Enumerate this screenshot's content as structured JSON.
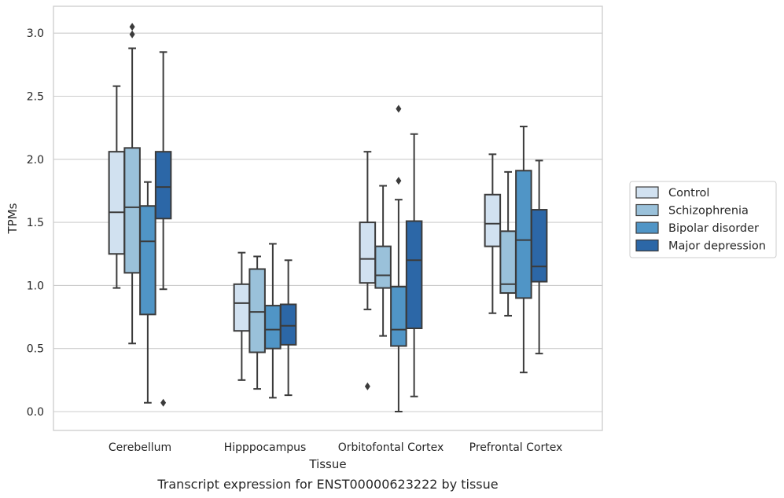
{
  "chart_data": {
    "type": "box",
    "title": "",
    "caption": "Transcript expression for ENST00000623222 by tissue",
    "xlabel": "Tissue",
    "ylabel": "TPMs",
    "ylim": [
      -0.15,
      3.2
    ],
    "yticks": [
      0.0,
      0.5,
      1.0,
      1.5,
      2.0,
      2.5,
      3.0
    ],
    "ytick_labels": [
      "0.0",
      "0.5",
      "1.0",
      "1.5",
      "2.0",
      "2.5",
      "3.0"
    ],
    "grid": "horizontal",
    "legend_position": "right",
    "categories": [
      "Cerebellum",
      "Hipppocampus",
      "Orbitofontal Cortex",
      "Prefrontal Cortex"
    ],
    "series": [
      {
        "name": "Control",
        "color": "#d1e1f0",
        "boxes": [
          {
            "whisker_low": 0.98,
            "q1": 1.25,
            "median": 1.58,
            "q3": 2.06,
            "whisker_high": 2.58,
            "outliers": []
          },
          {
            "whisker_low": 0.25,
            "q1": 0.64,
            "median": 0.86,
            "q3": 1.01,
            "whisker_high": 1.26,
            "outliers": []
          },
          {
            "whisker_low": 0.81,
            "q1": 1.02,
            "median": 1.21,
            "q3": 1.5,
            "whisker_high": 2.06,
            "outliers": [
              0.2
            ]
          },
          {
            "whisker_low": 0.78,
            "q1": 1.31,
            "median": 1.49,
            "q3": 1.72,
            "whisker_high": 2.04,
            "outliers": []
          }
        ]
      },
      {
        "name": "Schizophrenia",
        "color": "#9ac1da",
        "boxes": [
          {
            "whisker_low": 0.54,
            "q1": 1.1,
            "median": 1.62,
            "q3": 2.09,
            "whisker_high": 2.88,
            "outliers": [
              2.99,
              3.05
            ]
          },
          {
            "whisker_low": 0.18,
            "q1": 0.47,
            "median": 0.79,
            "q3": 1.13,
            "whisker_high": 1.23,
            "outliers": []
          },
          {
            "whisker_low": 0.6,
            "q1": 0.98,
            "median": 1.08,
            "q3": 1.31,
            "whisker_high": 1.79,
            "outliers": []
          },
          {
            "whisker_low": 0.76,
            "q1": 0.94,
            "median": 1.01,
            "q3": 1.43,
            "whisker_high": 1.9,
            "outliers": []
          }
        ]
      },
      {
        "name": "Bipolar disorder",
        "color": "#5095c6",
        "boxes": [
          {
            "whisker_low": 0.07,
            "q1": 0.77,
            "median": 1.35,
            "q3": 1.63,
            "whisker_high": 1.82,
            "outliers": []
          },
          {
            "whisker_low": 0.11,
            "q1": 0.5,
            "median": 0.65,
            "q3": 0.84,
            "whisker_high": 1.33,
            "outliers": []
          },
          {
            "whisker_low": 0.0,
            "q1": 0.52,
            "median": 0.65,
            "q3": 0.99,
            "whisker_high": 1.68,
            "outliers": [
              1.83,
              2.4
            ]
          },
          {
            "whisker_low": 0.31,
            "q1": 0.9,
            "median": 1.36,
            "q3": 1.91,
            "whisker_high": 2.26,
            "outliers": []
          }
        ]
      },
      {
        "name": "Major depression",
        "color": "#2c67a7",
        "boxes": [
          {
            "whisker_low": 0.97,
            "q1": 1.53,
            "median": 1.78,
            "q3": 2.06,
            "whisker_high": 2.85,
            "outliers": [
              0.07
            ]
          },
          {
            "whisker_low": 0.13,
            "q1": 0.53,
            "median": 0.68,
            "q3": 0.85,
            "whisker_high": 1.2,
            "outliers": []
          },
          {
            "whisker_low": 0.12,
            "q1": 0.66,
            "median": 1.2,
            "q3": 1.51,
            "whisker_high": 2.2,
            "outliers": []
          },
          {
            "whisker_low": 0.46,
            "q1": 1.03,
            "median": 1.15,
            "q3": 1.6,
            "whisker_high": 1.99,
            "outliers": []
          }
        ]
      }
    ]
  },
  "colors": {
    "frame": "#cccccc",
    "grid": "#cccccc",
    "box_edge": "#3b3b3b",
    "text": "#262626"
  }
}
